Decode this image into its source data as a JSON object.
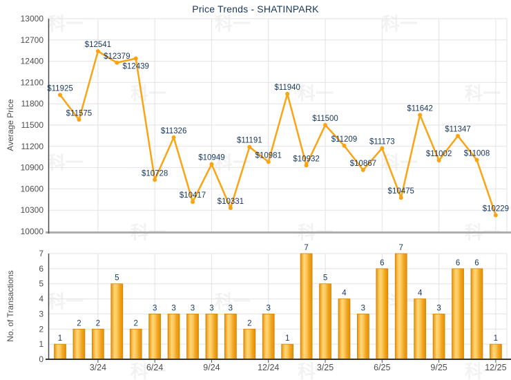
{
  "title": "Price Trends - SHATINPARK",
  "watermark_text": "科一",
  "colors": {
    "series_orange": "#FCA311",
    "bar_edge": "#E28D06",
    "bar_mid": "#F3A722",
    "bar_highlight": "#FED778",
    "bar_stroke": "#D0830A",
    "point_label_navy": "#17365d",
    "axis_text": "#4d4d4d",
    "gridline": "#e2e2e2",
    "axis_line_dark": "#4a4a4a",
    "price_baseline_gray": "#adadad",
    "title_navy": "#17365d"
  },
  "chart_data": [
    {
      "name": "price-trend-line",
      "type": "line",
      "title": "Price Trends - SHATINPARK",
      "xlabel": "",
      "ylabel": "Average Price",
      "ylim": [
        10000,
        13000
      ],
      "yticks": [
        10000,
        10300,
        10600,
        10900,
        11200,
        11500,
        11800,
        12100,
        12400,
        12700,
        13000
      ],
      "grid": true,
      "legend_position": "none",
      "values": [
        11925,
        11575,
        12541,
        12379,
        12439,
        10728,
        11326,
        10417,
        10949,
        10331,
        11191,
        10981,
        11940,
        10932,
        11500,
        11209,
        10867,
        11173,
        10475,
        11642,
        11002,
        11347,
        11008,
        10229
      ],
      "point_labels": [
        "$11925",
        "$11575",
        "$12541",
        "$12379",
        "$12439",
        "$10728",
        "$11326",
        "$10417",
        "$10949",
        "$10331",
        "$11191",
        "$10981",
        "$11940",
        "$10932",
        "$11500",
        "$11209",
        "$10867",
        "$11173",
        "$10475",
        "$11642",
        "$11002",
        "$11347",
        "$11008",
        "$10229"
      ],
      "label_below_indices": [
        4
      ],
      "xtick_labels": [
        "3/24",
        "6/24",
        "9/24",
        "12/24",
        "3/25",
        "6/25",
        "9/25",
        "12/25"
      ],
      "xtick_positions": [
        2,
        5,
        8,
        11,
        14,
        17,
        20,
        23
      ]
    },
    {
      "name": "transactions-bar",
      "type": "bar",
      "title": "",
      "xlabel": "",
      "ylabel": "No. of Transactions",
      "ylim": [
        0,
        7
      ],
      "yticks": [
        0,
        1,
        2,
        3,
        4,
        5,
        6,
        7
      ],
      "grid": true,
      "legend_position": "none",
      "values": [
        1,
        2,
        2,
        5,
        2,
        3,
        3,
        3,
        3,
        3,
        2,
        3,
        1,
        7,
        5,
        4,
        3,
        6,
        7,
        4,
        3,
        6,
        6,
        1
      ],
      "xtick_labels": [
        "3/24",
        "6/24",
        "9/24",
        "12/24",
        "3/25",
        "6/25",
        "9/25",
        "12/25"
      ],
      "xtick_positions": [
        2,
        5,
        8,
        11,
        14,
        17,
        20,
        23
      ]
    }
  ]
}
